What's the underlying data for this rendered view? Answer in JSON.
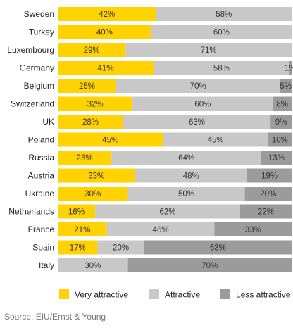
{
  "chart_data": {
    "type": "bar",
    "orientation": "horizontal",
    "stacked": true,
    "categories": [
      "Sweden",
      "Turkey",
      "Luxembourg",
      "Germany",
      "Belgium",
      "Switzerland",
      "UK",
      "Poland",
      "Russia",
      "Austria",
      "Ukraine",
      "Netherlands",
      "France",
      "Spain",
      "Italy"
    ],
    "series": [
      {
        "name": "Very attractive",
        "color": "#FFD200",
        "values": [
          42,
          40,
          29,
          41,
          25,
          32,
          28,
          45,
          23,
          33,
          30,
          16,
          21,
          17,
          0
        ]
      },
      {
        "name": "Attractive",
        "color": "#C8C8C8",
        "values": [
          58,
          60,
          71,
          58,
          70,
          60,
          63,
          45,
          64,
          48,
          50,
          62,
          46,
          20,
          30
        ]
      },
      {
        "name": "Less attractive",
        "color": "#9B9B9B",
        "values": [
          0,
          0,
          0,
          1,
          5,
          8,
          9,
          10,
          13,
          19,
          20,
          22,
          33,
          63,
          70
        ]
      }
    ],
    "xlim": [
      0,
      100
    ],
    "unit": "%",
    "legend_position": "bottom",
    "grid": false
  },
  "source": "Source: EIU/Ernst & Young"
}
